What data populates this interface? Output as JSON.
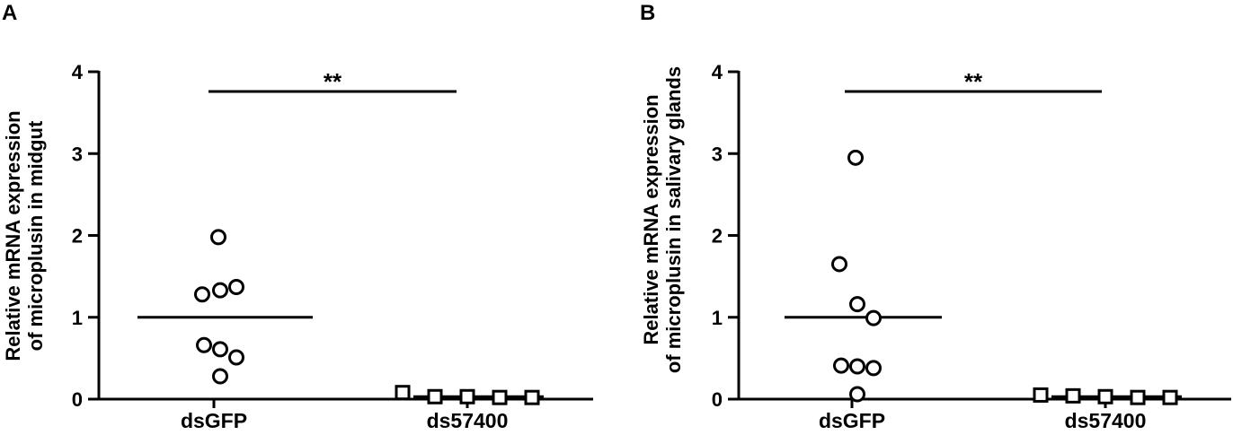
{
  "chart_data": [
    {
      "type": "scatter",
      "panel": "A",
      "ylabel_lines": [
        "Relative mRNA expression",
        "of microplusin in midgut"
      ],
      "ylim": [
        0,
        4
      ],
      "yticks": [
        "0",
        "1",
        "2",
        "3",
        "4"
      ],
      "categories": [
        "dsGFP",
        "ds57400"
      ],
      "series": [
        {
          "category": "dsGFP",
          "marker": "circle",
          "mean": 1.0,
          "values": [
            1.98,
            1.28,
            1.33,
            1.37,
            0.66,
            0.61,
            0.51,
            0.28
          ]
        },
        {
          "category": "ds57400",
          "marker": "square",
          "mean": 0.03,
          "values": [
            0.08,
            0.03,
            0.03,
            0.02,
            0.02
          ]
        }
      ],
      "significance": "**"
    },
    {
      "type": "scatter",
      "panel": "B",
      "ylabel_lines": [
        "Relative mRNA expression",
        "of microplusin in salivary glands"
      ],
      "ylim": [
        0,
        4
      ],
      "yticks": [
        "0",
        "1",
        "2",
        "3",
        "4"
      ],
      "categories": [
        "dsGFP",
        "ds57400"
      ],
      "series": [
        {
          "category": "dsGFP",
          "marker": "circle",
          "mean": 1.0,
          "values": [
            2.95,
            1.65,
            1.16,
            0.99,
            0.41,
            0.4,
            0.38,
            0.06
          ]
        },
        {
          "category": "ds57400",
          "marker": "square",
          "mean": 0.03,
          "values": [
            0.05,
            0.04,
            0.03,
            0.02,
            0.02
          ]
        }
      ],
      "significance": "**"
    }
  ]
}
